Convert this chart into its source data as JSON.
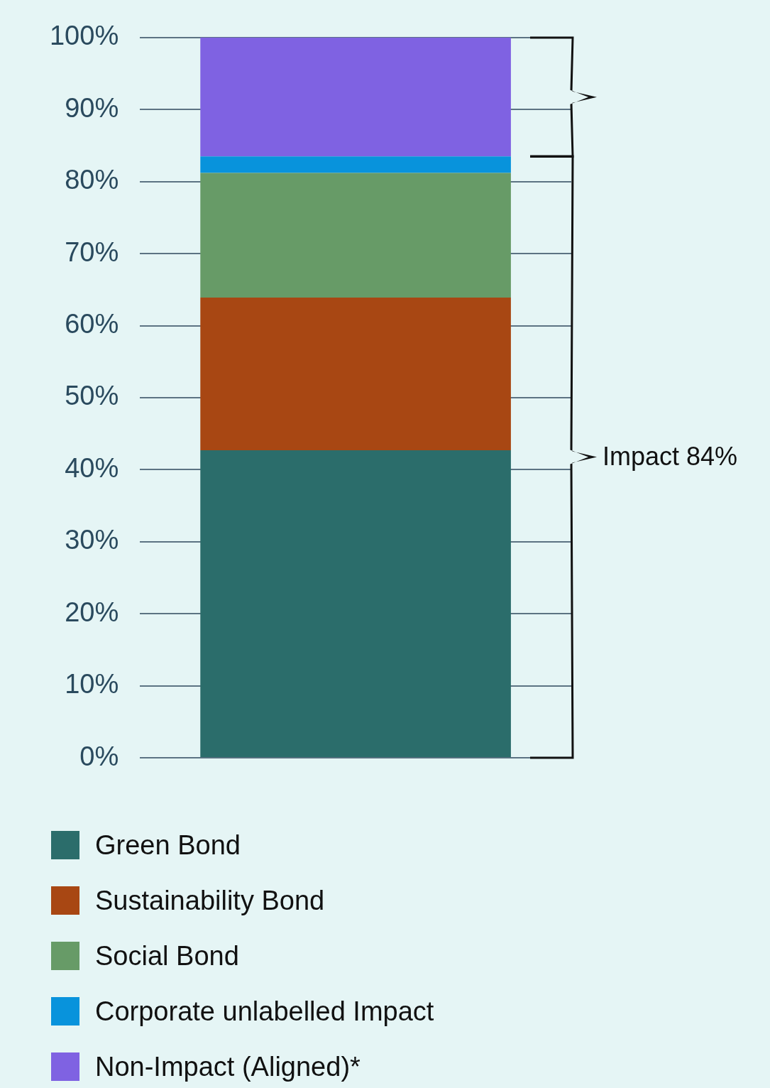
{
  "chart_data": {
    "type": "bar",
    "stacked": true,
    "categories": [
      null
    ],
    "series": [
      {
        "name": "Green Bond",
        "color": "#2b6d6b",
        "values": [
          42.7
        ]
      },
      {
        "name": "Sustainability Bond",
        "color": "#a84713",
        "values": [
          21.2
        ]
      },
      {
        "name": "Social Bond",
        "color": "#679b67",
        "values": [
          17.3
        ]
      },
      {
        "name": "Corporate unlabelled Impact",
        "color": "#0893dc",
        "values": [
          2.3
        ]
      },
      {
        "name": "Non-Impact (Aligned)*",
        "color": "#7f62e2",
        "values": [
          16.5
        ]
      }
    ],
    "ylim": [
      0,
      100
    ],
    "yticks": [
      {
        "value": 0,
        "label": "0%"
      },
      {
        "value": 10,
        "label": "10%"
      },
      {
        "value": 20,
        "label": "20%"
      },
      {
        "value": 30,
        "label": "30%"
      },
      {
        "value": 40,
        "label": "40%"
      },
      {
        "value": 50,
        "label": "50%"
      },
      {
        "value": 60,
        "label": "60%"
      },
      {
        "value": 70,
        "label": "70%"
      },
      {
        "value": 80,
        "label": "80%"
      },
      {
        "value": 90,
        "label": "90%"
      },
      {
        "value": 100,
        "label": "100%"
      }
    ],
    "grid": "y",
    "tick_labels": "y",
    "legend": "bottom",
    "annotations": [
      "Impact 84%"
    ]
  }
}
